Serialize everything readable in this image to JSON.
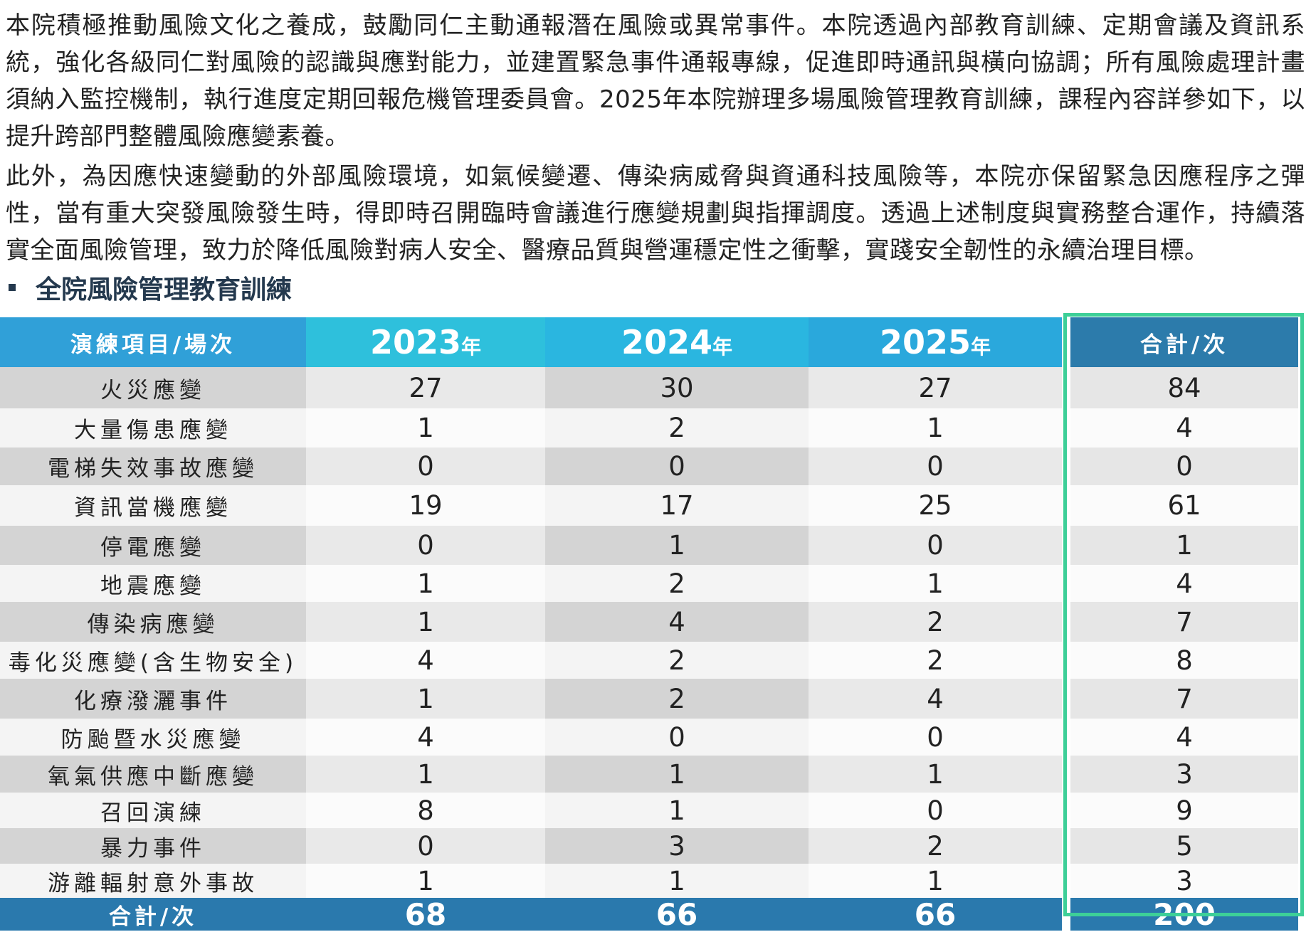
{
  "paragraphs": [
    "本院積極推動風險文化之養成，鼓勵同仁主動通報潛在風險或異常事件。本院透過內部教育訓練、定期會議及資訊系統，強化各級同仁對風險的認識與應對能力，並建置緊急事件通報專線，促進即時通訊與橫向協調；所有風險處理計畫須納入監控機制，執行進度定期回報危機管理委員會。2025年本院辦理多場風險管理教育訓練，課程內容詳參如下，以提升跨部門整體風險應變素養。",
    "此外，為因應快速變動的外部風險環境，如氣候變遷、傳染病威脅與資通科技風險等，本院亦保留緊急因應程序之彈性，當有重大突發風險發生時，得即時召開臨時會議進行應變規劃與指揮調度。透過上述制度與實務整合運作，持續落實全面風險管理，致力於降低風險對病人安全、醫療品質與營運穩定性之衝擊，實踐安全韌性的永續治理目標。"
  ],
  "section_heading": "全院風險管理教育訓練",
  "table": {
    "header_item": "演練項目/場次",
    "year_cols": [
      {
        "year": "2023",
        "suffix": "年"
      },
      {
        "year": "2024",
        "suffix": "年"
      },
      {
        "year": "2025",
        "suffix": "年"
      }
    ],
    "header_total": "合計/次",
    "rows": [
      {
        "item": "火災應變",
        "v": [
          "27",
          "30",
          "27",
          "84"
        ]
      },
      {
        "item": "大量傷患應變",
        "v": [
          "1",
          "2",
          "1",
          "4"
        ]
      },
      {
        "item": "電梯失效事故應變",
        "v": [
          "0",
          "0",
          "0",
          "0"
        ]
      },
      {
        "item": "資訊當機應變",
        "v": [
          "19",
          "17",
          "25",
          "61"
        ]
      },
      {
        "item": "停電應變",
        "v": [
          "0",
          "1",
          "0",
          "1"
        ]
      },
      {
        "item": "地震應變",
        "v": [
          "1",
          "2",
          "1",
          "4"
        ]
      },
      {
        "item": "傳染病應變",
        "v": [
          "1",
          "4",
          "2",
          "7"
        ]
      },
      {
        "item": "毒化災應變(含生物安全)",
        "v": [
          "4",
          "2",
          "2",
          "8"
        ]
      },
      {
        "item": "化療潑灑事件",
        "v": [
          "1",
          "2",
          "4",
          "7"
        ]
      },
      {
        "item": "防颱暨水災應變",
        "v": [
          "4",
          "0",
          "0",
          "4"
        ]
      },
      {
        "item": "氧氣供應中斷應變",
        "v": [
          "1",
          "1",
          "1",
          "3"
        ]
      },
      {
        "item": "召回演練",
        "v": [
          "8",
          "1",
          "0",
          "9"
        ]
      },
      {
        "item": "暴力事件",
        "v": [
          "0",
          "3",
          "2",
          "5"
        ]
      },
      {
        "item": "游離輻射意外事故",
        "v": [
          "1",
          "1",
          "1",
          "3"
        ]
      }
    ],
    "total": {
      "label": "合計/次",
      "v": [
        "68",
        "66",
        "66",
        "200"
      ]
    }
  },
  "colors": {
    "header_blue": "#30a0d8",
    "header_dark": "#2c7bab",
    "total_row": "#2a79ad",
    "highlight_border": "#3dcf98"
  }
}
